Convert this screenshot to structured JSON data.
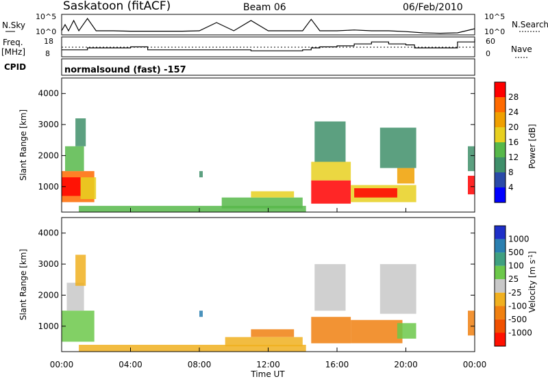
{
  "header": {
    "station": "Saskatoon (fitACF)",
    "beam": "Beam 06",
    "date": "06/Feb/2010"
  },
  "colors": {
    "power_scale": [
      "#0000ff",
      "#2a4aa8",
      "#3f8f6a",
      "#57b84a",
      "#e8d020",
      "#f0a000",
      "#ff6a00",
      "#ff0000"
    ],
    "velocity_scale": [
      "#1e2fc8",
      "#2a7fb0",
      "#3fa080",
      "#6cc84a",
      "#c8c8c8",
      "#f0b020",
      "#f08010",
      "#f05000",
      "#ff1000"
    ]
  },
  "labels": {
    "nsky": "N.Sky",
    "nsky_ticks": [
      "10^5",
      "10^0"
    ],
    "nsearch": "N.Search",
    "nsearch_ticks": [
      "10^5",
      "10^0"
    ],
    "freq": "Freq.",
    "freq_unit": "[MHz]",
    "freq_ticks": [
      "18",
      "8"
    ],
    "nave": "Nave",
    "nave_ticks": [
      "60",
      "0"
    ],
    "cpid": "CPID",
    "cpid_value": "normalsound (fast) -157",
    "ylabel": "Slant Range [km]",
    "xlabel": "Time UT",
    "y_ticks": [
      "1000",
      "2000",
      "3000",
      "4000"
    ],
    "x_ticks": [
      "00:00",
      "04:00",
      "08:00",
      "12:00",
      "16:00",
      "20:00",
      "00:00"
    ],
    "power_title": "Power [dB]",
    "power_ticks": [
      "4",
      "8",
      "12",
      "16",
      "20",
      "24",
      "28"
    ],
    "velocity_title": "Velocity [m s^-1]",
    "velocity_ticks": [
      "1000",
      "500",
      "100",
      "25",
      "-25",
      "-100",
      "-500",
      "-1000"
    ]
  },
  "chart_data": [
    {
      "type": "line",
      "name": "N.Sky / N.Search",
      "x_hours": [
        0,
        0.2,
        0.4,
        0.7,
        1.0,
        1.5,
        2.0,
        3.0,
        4.0,
        5.0,
        6.0,
        7.0,
        8.0,
        9.0,
        10.0,
        11.0,
        12.0,
        13.0,
        14.0,
        14.5,
        15.0,
        16.0,
        17.0,
        18.0,
        19.0,
        20.0,
        21.0,
        22.0,
        23.0,
        24.0
      ],
      "values_log": [
        1.0,
        2.5,
        1.0,
        3.5,
        1.0,
        4.0,
        1.0,
        1.0,
        0.9,
        0.9,
        0.9,
        0.9,
        1.0,
        3.0,
        1.0,
        3.5,
        1.0,
        1.0,
        1.0,
        3.8,
        1.0,
        1.0,
        1.2,
        1.0,
        1.0,
        0.8,
        0.5,
        0.4,
        0.5,
        1.5
      ],
      "ylim_log": [
        0,
        5
      ]
    },
    {
      "type": "line",
      "name": "Freq.",
      "ylabel": "Freq. [MHz]",
      "x_hours": [
        0,
        1.5,
        3,
        4,
        5,
        6,
        8,
        10,
        11,
        12,
        13,
        14,
        14.5,
        15,
        16,
        17,
        18,
        19,
        20,
        20.5,
        21,
        23,
        24
      ],
      "values": [
        11.5,
        12.5,
        12.5,
        13,
        11.5,
        11.5,
        11.5,
        11.5,
        11,
        11,
        11,
        11.5,
        12.5,
        13,
        13.5,
        14.5,
        15.5,
        14.5,
        14,
        12.5,
        12.5,
        15.5,
        17
      ],
      "ylim": [
        8,
        18
      ]
    },
    {
      "type": "heatmap",
      "name": "Power",
      "colorbar_label": "Power [dB]",
      "xlabel": "Time UT",
      "ylabel": "Slant Range [km]",
      "ylim": [
        180,
        4500
      ],
      "xlim": [
        0,
        24
      ],
      "clim": [
        0,
        32
      ],
      "regions": [
        {
          "t0": 0.0,
          "t1": 1.9,
          "r0": 500,
          "r1": 1500,
          "v": 26
        },
        {
          "t0": 0.0,
          "t1": 1.1,
          "r0": 700,
          "r1": 1300,
          "v": 30
        },
        {
          "t0": 1.1,
          "t1": 2.0,
          "r0": 600,
          "r1": 1300,
          "v": 18
        },
        {
          "t0": 0.2,
          "t1": 1.3,
          "r0": 1500,
          "r1": 2300,
          "v": 14
        },
        {
          "t0": 0.8,
          "t1": 1.4,
          "r0": 2300,
          "r1": 3200,
          "v": 10
        },
        {
          "t0": 1.0,
          "t1": 14.2,
          "r0": 180,
          "r1": 380,
          "v": 12
        },
        {
          "t0": 9.3,
          "t1": 14.0,
          "r0": 300,
          "r1": 650,
          "v": 12
        },
        {
          "t0": 11.0,
          "t1": 13.5,
          "r0": 650,
          "r1": 850,
          "v": 18
        },
        {
          "t0": 14.5,
          "t1": 16.8,
          "r0": 450,
          "r1": 1200,
          "v": 30
        },
        {
          "t0": 14.5,
          "t1": 16.8,
          "r0": 1200,
          "r1": 1800,
          "v": 18
        },
        {
          "t0": 14.7,
          "t1": 16.5,
          "r0": 1800,
          "r1": 3100,
          "v": 10
        },
        {
          "t0": 16.8,
          "t1": 20.6,
          "r0": 500,
          "r1": 1050,
          "v": 16
        },
        {
          "t0": 17.0,
          "t1": 19.5,
          "r0": 650,
          "r1": 950,
          "v": 28
        },
        {
          "t0": 19.5,
          "t1": 20.5,
          "r0": 1100,
          "r1": 1600,
          "v": 20
        },
        {
          "t0": 18.5,
          "t1": 20.6,
          "r0": 1600,
          "r1": 2900,
          "v": 8
        },
        {
          "t0": 23.6,
          "t1": 24.0,
          "r0": 750,
          "r1": 1350,
          "v": 28
        },
        {
          "t0": 23.6,
          "t1": 24.0,
          "r0": 1500,
          "r1": 2300,
          "v": 8
        },
        {
          "t0": 8.0,
          "t1": 8.2,
          "r0": 1300,
          "r1": 1500,
          "v": 8
        }
      ]
    },
    {
      "type": "heatmap",
      "name": "Velocity",
      "colorbar_label": "Velocity [m s^-1]",
      "xlabel": "Time UT",
      "ylabel": "Slant Range [km]",
      "ylim": [
        180,
        4500
      ],
      "xlim": [
        0,
        24
      ],
      "clim": [
        -1000,
        1000
      ],
      "regions": [
        {
          "t0": 0.0,
          "t1": 1.9,
          "r0": 500,
          "r1": 1500,
          "v": 60
        },
        {
          "t0": 0.3,
          "t1": 1.3,
          "r0": 1500,
          "r1": 2400,
          "v": 20
        },
        {
          "t0": 0.8,
          "t1": 1.4,
          "r0": 2300,
          "r1": 3300,
          "v": -50
        },
        {
          "t0": 1.0,
          "t1": 14.2,
          "r0": 180,
          "r1": 400,
          "v": -30
        },
        {
          "t0": 9.5,
          "t1": 14.0,
          "r0": 350,
          "r1": 650,
          "v": -100
        },
        {
          "t0": 11.0,
          "t1": 13.5,
          "r0": 650,
          "r1": 900,
          "v": -250
        },
        {
          "t0": 14.5,
          "t1": 16.8,
          "r0": 450,
          "r1": 1300,
          "v": -150
        },
        {
          "t0": 14.7,
          "t1": 16.5,
          "r0": 1500,
          "r1": 3000,
          "v": 0
        },
        {
          "t0": 16.8,
          "t1": 19.8,
          "r0": 450,
          "r1": 1200,
          "v": -150
        },
        {
          "t0": 18.5,
          "t1": 20.6,
          "r0": 1400,
          "r1": 3000,
          "v": 0
        },
        {
          "t0": 19.5,
          "t1": 20.6,
          "r0": 600,
          "r1": 1100,
          "v": 60
        },
        {
          "t0": 23.6,
          "t1": 24.0,
          "r0": 700,
          "r1": 1500,
          "v": -200
        },
        {
          "t0": 8.0,
          "t1": 8.2,
          "r0": 1300,
          "r1": 1500,
          "v": 700
        }
      ]
    }
  ]
}
